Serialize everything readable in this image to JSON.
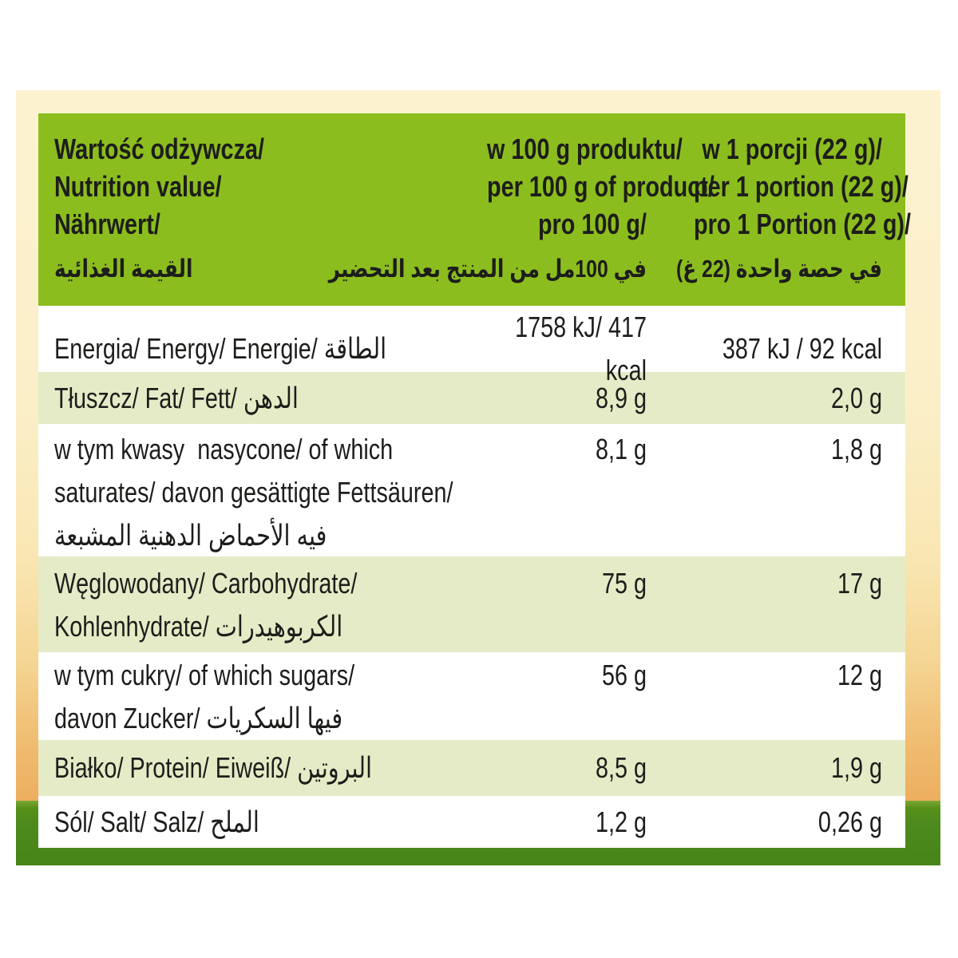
{
  "colors": {
    "header_green": "#8CBD1E",
    "row_stripe_green": "#E5EBC6",
    "grass_green": "#4C8A1D",
    "background_cream": "#FBF0CA",
    "background_orange": "#EDAE5F",
    "text": "#1D1D1B"
  },
  "table": {
    "header": {
      "col1_lines": [
        "Wartość odżywcza/",
        "Nutrition value/",
        "Nährwert/",
        "القيمة الغذائية"
      ],
      "col2_lines": [
        "w 100 g produktu/",
        "per 100 g of product/",
        "pro 100 g/",
        "في 100مل من المنتج بعد التحضير"
      ],
      "col3_lines": [
        "w 1 porcji (22 g)/",
        "per 1 portion (22 g)/",
        "pro 1 Portion (22 g)/",
        "في حصة واحدة (22 غ)"
      ]
    },
    "rows": [
      {
        "label_lines": [
          "Energia/ Energy/ Energie/ الطاقة"
        ],
        "per100": "1758 kJ/ 417 kcal",
        "portion": "387 kJ / 92 kcal"
      },
      {
        "label_lines": [
          "Tłuszcz/ Fat/ Fett/ الدهن"
        ],
        "per100": "8,9 g",
        "portion": "2,0 g"
      },
      {
        "label_lines": [
          "w tym kwasy  nasycone/ of which",
          "saturates/ davon gesättigte Fettsäuren/",
          "فيه الأحماض الدهنية المشبعة"
        ],
        "per100": "8,1 g",
        "portion": "1,8 g"
      },
      {
        "label_lines": [
          "Węglowodany/ Carbohydrate/",
          "Kohlenhydrate/ الكربوهيدرات"
        ],
        "per100": "75 g",
        "portion": "17 g"
      },
      {
        "label_lines": [
          "w tym cukry/ of which sugars/",
          "davon Zucker/ فيها السكريات"
        ],
        "per100": "56 g",
        "portion": "12 g"
      },
      {
        "label_lines": [
          "Białko/ Protein/ Eiweiß/ البروتين"
        ],
        "per100": "8,5 g",
        "portion": "1,9 g"
      },
      {
        "label_lines": [
          "Sól/ Salt/ Salz/ الملح"
        ],
        "per100": "1,2 g",
        "portion": "0,26 g"
      }
    ]
  }
}
